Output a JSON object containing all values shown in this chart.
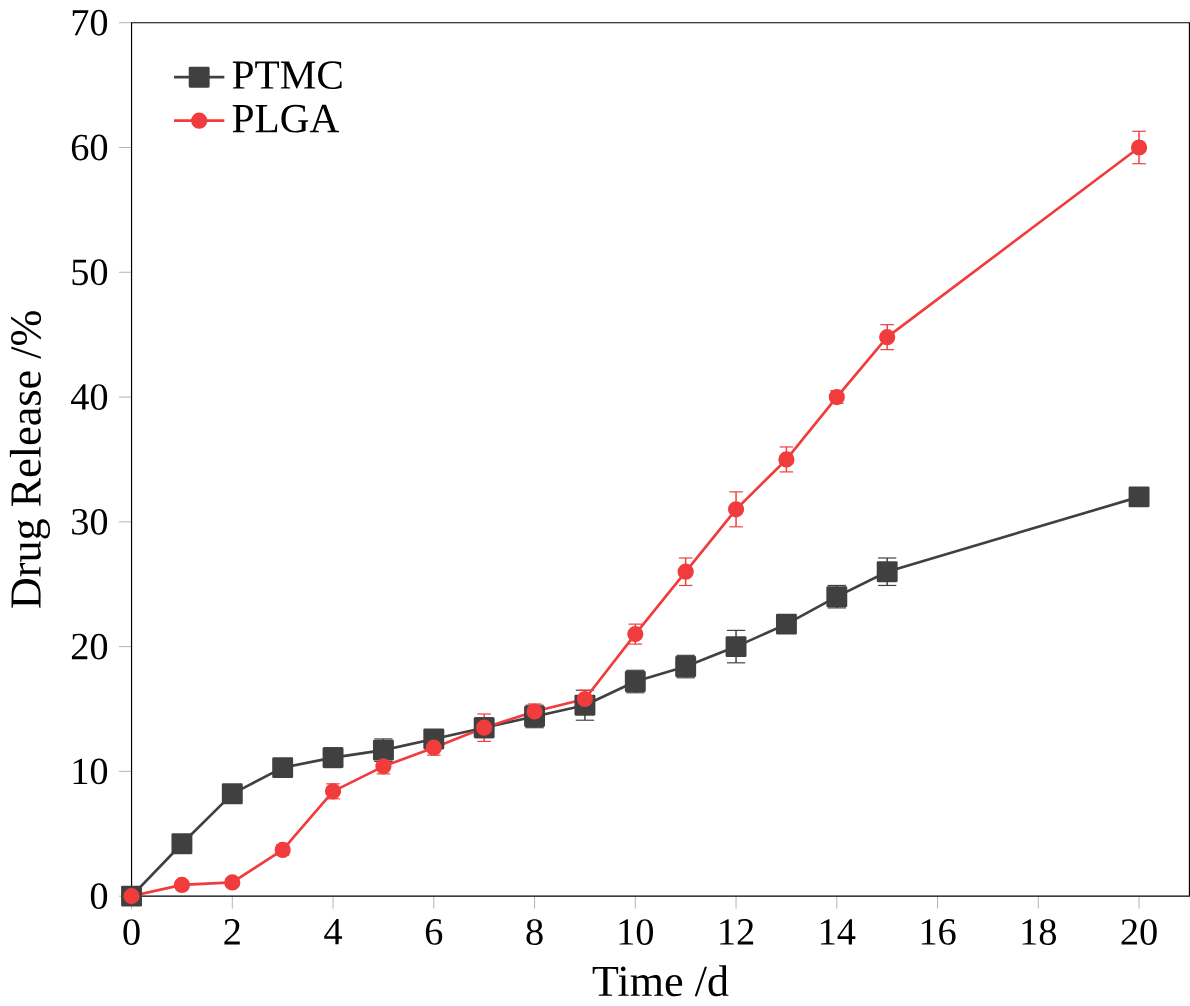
{
  "chart_data": {
    "type": "line",
    "xlabel": "Time /d",
    "ylabel": "Drug Release /%",
    "xlim": [
      0,
      21
    ],
    "ylim": [
      0,
      70
    ],
    "xticks": [
      0,
      2,
      4,
      6,
      8,
      10,
      12,
      14,
      16,
      18,
      20
    ],
    "yticks": [
      0,
      10,
      20,
      30,
      40,
      50,
      60,
      70
    ],
    "legend": "top left",
    "line_style": "solid",
    "grid": false,
    "series": [
      {
        "name": "PTMC",
        "color": "#404040",
        "marker": "square",
        "x": [
          0,
          1,
          2,
          3,
          4,
          5,
          6,
          7,
          8,
          9,
          10,
          11,
          12,
          13,
          14,
          15,
          20
        ],
        "values": [
          0,
          4.2,
          8.2,
          10.3,
          11.1,
          11.7,
          12.6,
          13.5,
          14.4,
          15.3,
          17.2,
          18.4,
          20,
          21.8,
          24,
          26,
          32
        ],
        "errors": [
          0,
          0.3,
          0.4,
          0.5,
          0.8,
          0.9,
          0.7,
          0.8,
          0.9,
          1.2,
          0.9,
          0.9,
          1.3,
          0.6,
          0.9,
          1.1,
          0.5
        ]
      },
      {
        "name": "PLGA",
        "color": "#f03c3c",
        "marker": "circle",
        "x": [
          0,
          1,
          2,
          3,
          4,
          5,
          6,
          7,
          8,
          9,
          10,
          11,
          12,
          13,
          14,
          15,
          20
        ],
        "values": [
          0,
          0.9,
          1.1,
          3.7,
          8.4,
          10.4,
          11.9,
          13.5,
          14.8,
          15.8,
          21,
          26,
          31,
          35,
          40,
          44.8,
          60
        ],
        "errors": [
          0,
          0.3,
          0.3,
          0.4,
          0.6,
          0.6,
          0.6,
          1.1,
          0.6,
          0.7,
          0.8,
          1.1,
          1.4,
          1,
          0.5,
          1,
          1.3
        ]
      }
    ]
  }
}
